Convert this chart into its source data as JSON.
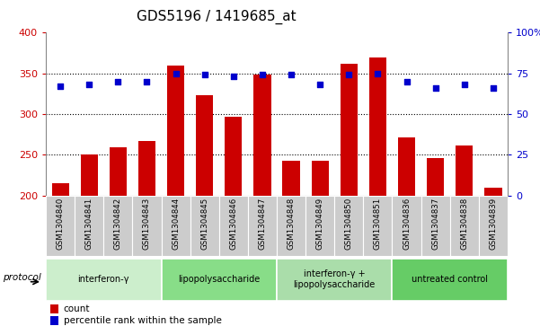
{
  "title": "GDS5196 / 1419685_at",
  "samples": [
    "GSM1304840",
    "GSM1304841",
    "GSM1304842",
    "GSM1304843",
    "GSM1304844",
    "GSM1304845",
    "GSM1304846",
    "GSM1304847",
    "GSM1304848",
    "GSM1304849",
    "GSM1304850",
    "GSM1304851",
    "GSM1304836",
    "GSM1304837",
    "GSM1304838",
    "GSM1304839"
  ],
  "counts": [
    215,
    250,
    259,
    267,
    360,
    323,
    297,
    348,
    243,
    243,
    362,
    370,
    271,
    246,
    262,
    210
  ],
  "percentiles": [
    67,
    68,
    70,
    70,
    75,
    74,
    73,
    74,
    74,
    68,
    74,
    75,
    70,
    66,
    68,
    66
  ],
  "groups": [
    {
      "label": "interferon-γ",
      "start": 0,
      "end": 4
    },
    {
      "label": "lipopolysaccharide",
      "start": 4,
      "end": 8
    },
    {
      "label": "interferon-γ +\nlipopolysaccharide",
      "start": 8,
      "end": 12
    },
    {
      "label": "untreated control",
      "start": 12,
      "end": 16
    }
  ],
  "group_colors": [
    "#cceecc",
    "#88dd88",
    "#aaddaa",
    "#66cc66"
  ],
  "bar_color": "#cc0000",
  "dot_color": "#0000cc",
  "ylim_left": [
    200,
    400
  ],
  "ylim_right": [
    0,
    100
  ],
  "yticks_left": [
    200,
    250,
    300,
    350,
    400
  ],
  "yticks_right": [
    0,
    25,
    50,
    75,
    100
  ],
  "hline_values": [
    250,
    300,
    350
  ],
  "title_fontsize": 11,
  "axis_label_color_left": "#cc0000",
  "axis_label_color_right": "#0000cc",
  "legend_items": [
    "count",
    "percentile rank within the sample"
  ],
  "protocol_label": "protocol"
}
